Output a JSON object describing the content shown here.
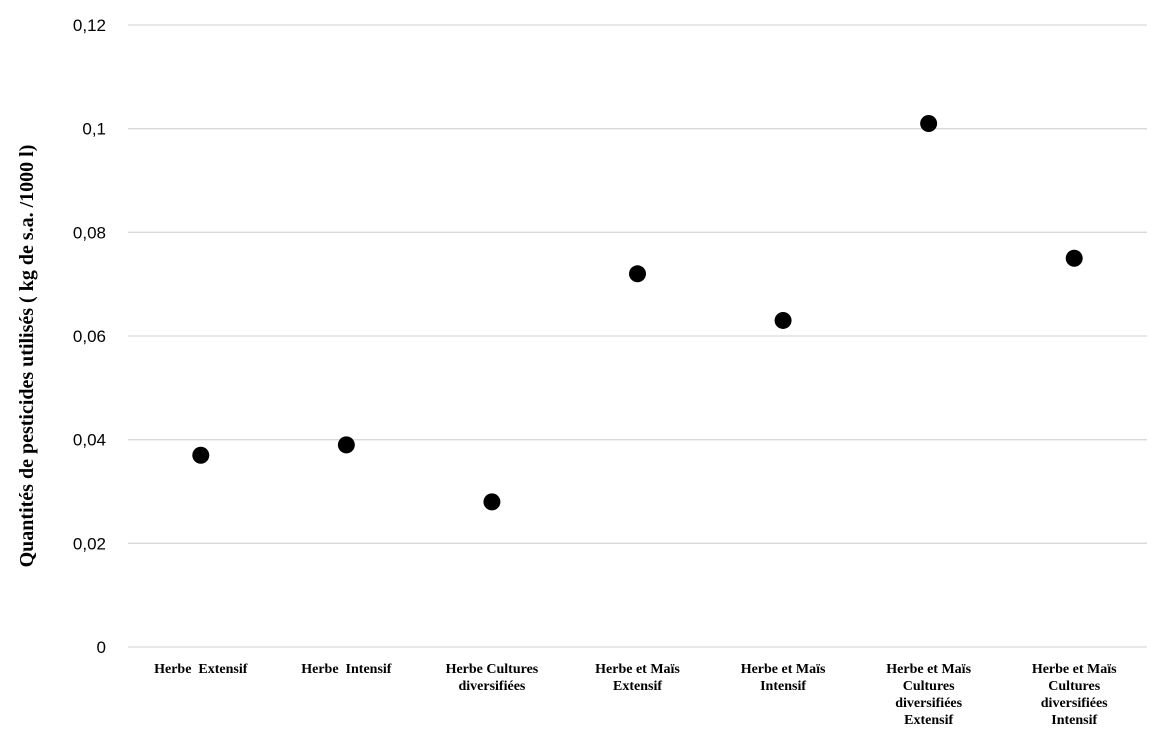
{
  "chart_data": {
    "type": "scatter",
    "categories": [
      [
        "Herbe  Extensif"
      ],
      [
        "Herbe  Intensif"
      ],
      [
        "Herbe Cultures",
        "diversifiées"
      ],
      [
        "Herbe et Maïs",
        "Extensif"
      ],
      [
        "Herbe et Maïs",
        "Intensif"
      ],
      [
        "Herbe et Maïs",
        "Cultures",
        "diversifiées",
        "Extensif"
      ],
      [
        "Herbe et Maïs",
        "Cultures",
        "diversifiées",
        "Intensif"
      ]
    ],
    "values": [
      0.037,
      0.039,
      0.028,
      0.072,
      0.063,
      0.101,
      0.075
    ],
    "ylabel": "Quantités de pesticides utilisés ( kg de s.a. /1000 l)",
    "ylim": [
      0,
      0.12
    ],
    "yticks": [
      0,
      0.02,
      0.04,
      0.06,
      0.08,
      0.1,
      0.12
    ],
    "ytick_labels": [
      "0",
      "0,02",
      "0,04",
      "0,06",
      "0,08",
      "0,1",
      "0,12"
    ],
    "grid": true,
    "legend": "none",
    "marker_color": "#000000",
    "grid_color": "#d9d9d9"
  }
}
